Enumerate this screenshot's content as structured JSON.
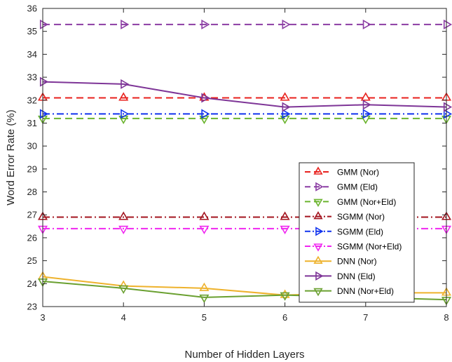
{
  "chart_data": {
    "type": "line",
    "xlabel": "Number of Hidden Layers",
    "ylabel": "Word Error Rate (%)",
    "xlim": [
      3,
      8
    ],
    "ylim": [
      23,
      36
    ],
    "x_ticks": [
      3,
      4,
      5,
      6,
      7,
      8
    ],
    "y_ticks": [
      23,
      24,
      25,
      26,
      27,
      28,
      29,
      30,
      31,
      32,
      33,
      34,
      35,
      36
    ],
    "grid": false,
    "legend_position": "right-center",
    "x": [
      3,
      4,
      5,
      6,
      7,
      8
    ],
    "series": [
      {
        "name": "GMM (Nor)",
        "values": [
          32.1,
          32.1,
          32.1,
          32.1,
          32.1,
          32.1
        ],
        "color": "#e8211d",
        "dash": "dashed",
        "marker": "triangle-up"
      },
      {
        "name": "GMM (Eld)",
        "values": [
          35.3,
          35.3,
          35.3,
          35.3,
          35.3,
          35.3
        ],
        "color": "#8b3da3",
        "dash": "dashed",
        "marker": "triangle-right"
      },
      {
        "name": "GMM (Nor+Eld)",
        "values": [
          31.2,
          31.2,
          31.2,
          31.2,
          31.2,
          31.2
        ],
        "color": "#6bb42e",
        "dash": "dashed",
        "marker": "triangle-down"
      },
      {
        "name": "SGMM (Nor)",
        "values": [
          26.9,
          26.9,
          26.9,
          26.9,
          26.9,
          26.9
        ],
        "color": "#a3141f",
        "dash": "dashdot",
        "marker": "triangle-up"
      },
      {
        "name": "SGMM (Eld)",
        "values": [
          31.4,
          31.4,
          31.4,
          31.4,
          31.4,
          31.4
        ],
        "color": "#1133ee",
        "dash": "dashdot",
        "marker": "triangle-right"
      },
      {
        "name": "SGMM (Nor+Eld)",
        "values": [
          26.4,
          26.4,
          26.4,
          26.4,
          26.4,
          26.4
        ],
        "color": "#f026f0",
        "dash": "dashdot",
        "marker": "triangle-down"
      },
      {
        "name": "DNN (Nor)",
        "values": [
          24.3,
          23.9,
          23.8,
          23.5,
          23.6,
          23.6
        ],
        "color": "#eeb22c",
        "dash": "solid",
        "marker": "triangle-up"
      },
      {
        "name": "DNN (Eld)",
        "values": [
          32.8,
          32.7,
          32.1,
          31.7,
          31.8,
          31.7
        ],
        "color": "#7e3597",
        "dash": "solid",
        "marker": "triangle-right"
      },
      {
        "name": "DNN (Nor+Eld)",
        "values": [
          24.1,
          23.8,
          23.4,
          23.5,
          23.4,
          23.3
        ],
        "color": "#6aa030",
        "dash": "solid",
        "marker": "triangle-down"
      }
    ]
  }
}
